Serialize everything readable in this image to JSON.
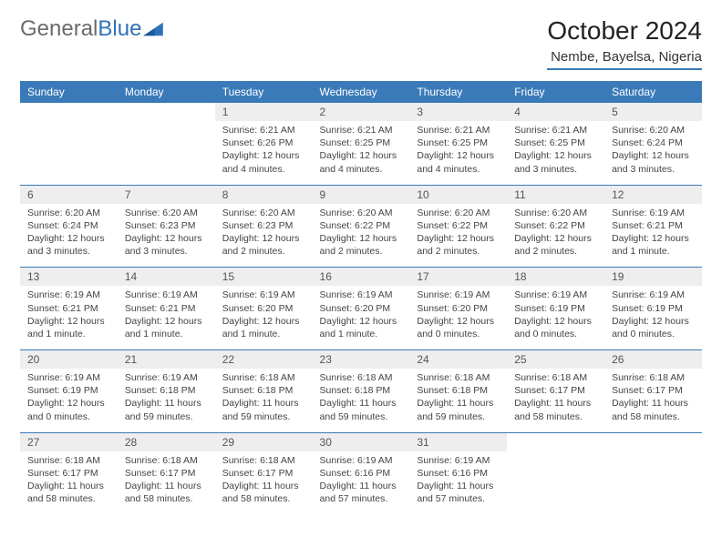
{
  "logo": {
    "word1": "General",
    "word2": "Blue"
  },
  "title": "October 2024",
  "location": "Nembe, Bayelsa, Nigeria",
  "colors": {
    "header_bg": "#3a7ab8",
    "header_text": "#ffffff",
    "daynum_bg": "#eeeeee",
    "rule": "#3a7ab8",
    "logo_gray": "#6b6b6b",
    "logo_blue": "#2f72b8",
    "body_text": "#444444"
  },
  "fonts": {
    "title_size_pt": 21,
    "location_size_pt": 11,
    "dayhead_size_pt": 9,
    "cell_size_pt": 8
  },
  "day_names": [
    "Sunday",
    "Monday",
    "Tuesday",
    "Wednesday",
    "Thursday",
    "Friday",
    "Saturday"
  ],
  "weeks": [
    [
      null,
      null,
      {
        "n": "1",
        "sr": "6:21 AM",
        "ss": "6:26 PM",
        "dl": "12 hours and 4 minutes."
      },
      {
        "n": "2",
        "sr": "6:21 AM",
        "ss": "6:25 PM",
        "dl": "12 hours and 4 minutes."
      },
      {
        "n": "3",
        "sr": "6:21 AM",
        "ss": "6:25 PM",
        "dl": "12 hours and 4 minutes."
      },
      {
        "n": "4",
        "sr": "6:21 AM",
        "ss": "6:25 PM",
        "dl": "12 hours and 3 minutes."
      },
      {
        "n": "5",
        "sr": "6:20 AM",
        "ss": "6:24 PM",
        "dl": "12 hours and 3 minutes."
      }
    ],
    [
      {
        "n": "6",
        "sr": "6:20 AM",
        "ss": "6:24 PM",
        "dl": "12 hours and 3 minutes."
      },
      {
        "n": "7",
        "sr": "6:20 AM",
        "ss": "6:23 PM",
        "dl": "12 hours and 3 minutes."
      },
      {
        "n": "8",
        "sr": "6:20 AM",
        "ss": "6:23 PM",
        "dl": "12 hours and 2 minutes."
      },
      {
        "n": "9",
        "sr": "6:20 AM",
        "ss": "6:22 PM",
        "dl": "12 hours and 2 minutes."
      },
      {
        "n": "10",
        "sr": "6:20 AM",
        "ss": "6:22 PM",
        "dl": "12 hours and 2 minutes."
      },
      {
        "n": "11",
        "sr": "6:20 AM",
        "ss": "6:22 PM",
        "dl": "12 hours and 2 minutes."
      },
      {
        "n": "12",
        "sr": "6:19 AM",
        "ss": "6:21 PM",
        "dl": "12 hours and 1 minute."
      }
    ],
    [
      {
        "n": "13",
        "sr": "6:19 AM",
        "ss": "6:21 PM",
        "dl": "12 hours and 1 minute."
      },
      {
        "n": "14",
        "sr": "6:19 AM",
        "ss": "6:21 PM",
        "dl": "12 hours and 1 minute."
      },
      {
        "n": "15",
        "sr": "6:19 AM",
        "ss": "6:20 PM",
        "dl": "12 hours and 1 minute."
      },
      {
        "n": "16",
        "sr": "6:19 AM",
        "ss": "6:20 PM",
        "dl": "12 hours and 1 minute."
      },
      {
        "n": "17",
        "sr": "6:19 AM",
        "ss": "6:20 PM",
        "dl": "12 hours and 0 minutes."
      },
      {
        "n": "18",
        "sr": "6:19 AM",
        "ss": "6:19 PM",
        "dl": "12 hours and 0 minutes."
      },
      {
        "n": "19",
        "sr": "6:19 AM",
        "ss": "6:19 PM",
        "dl": "12 hours and 0 minutes."
      }
    ],
    [
      {
        "n": "20",
        "sr": "6:19 AM",
        "ss": "6:19 PM",
        "dl": "12 hours and 0 minutes."
      },
      {
        "n": "21",
        "sr": "6:19 AM",
        "ss": "6:18 PM",
        "dl": "11 hours and 59 minutes."
      },
      {
        "n": "22",
        "sr": "6:18 AM",
        "ss": "6:18 PM",
        "dl": "11 hours and 59 minutes."
      },
      {
        "n": "23",
        "sr": "6:18 AM",
        "ss": "6:18 PM",
        "dl": "11 hours and 59 minutes."
      },
      {
        "n": "24",
        "sr": "6:18 AM",
        "ss": "6:18 PM",
        "dl": "11 hours and 59 minutes."
      },
      {
        "n": "25",
        "sr": "6:18 AM",
        "ss": "6:17 PM",
        "dl": "11 hours and 58 minutes."
      },
      {
        "n": "26",
        "sr": "6:18 AM",
        "ss": "6:17 PM",
        "dl": "11 hours and 58 minutes."
      }
    ],
    [
      {
        "n": "27",
        "sr": "6:18 AM",
        "ss": "6:17 PM",
        "dl": "11 hours and 58 minutes."
      },
      {
        "n": "28",
        "sr": "6:18 AM",
        "ss": "6:17 PM",
        "dl": "11 hours and 58 minutes."
      },
      {
        "n": "29",
        "sr": "6:18 AM",
        "ss": "6:17 PM",
        "dl": "11 hours and 58 minutes."
      },
      {
        "n": "30",
        "sr": "6:19 AM",
        "ss": "6:16 PM",
        "dl": "11 hours and 57 minutes."
      },
      {
        "n": "31",
        "sr": "6:19 AM",
        "ss": "6:16 PM",
        "dl": "11 hours and 57 minutes."
      },
      null,
      null
    ]
  ],
  "labels": {
    "sunrise": "Sunrise:",
    "sunset": "Sunset:",
    "daylight": "Daylight:"
  }
}
